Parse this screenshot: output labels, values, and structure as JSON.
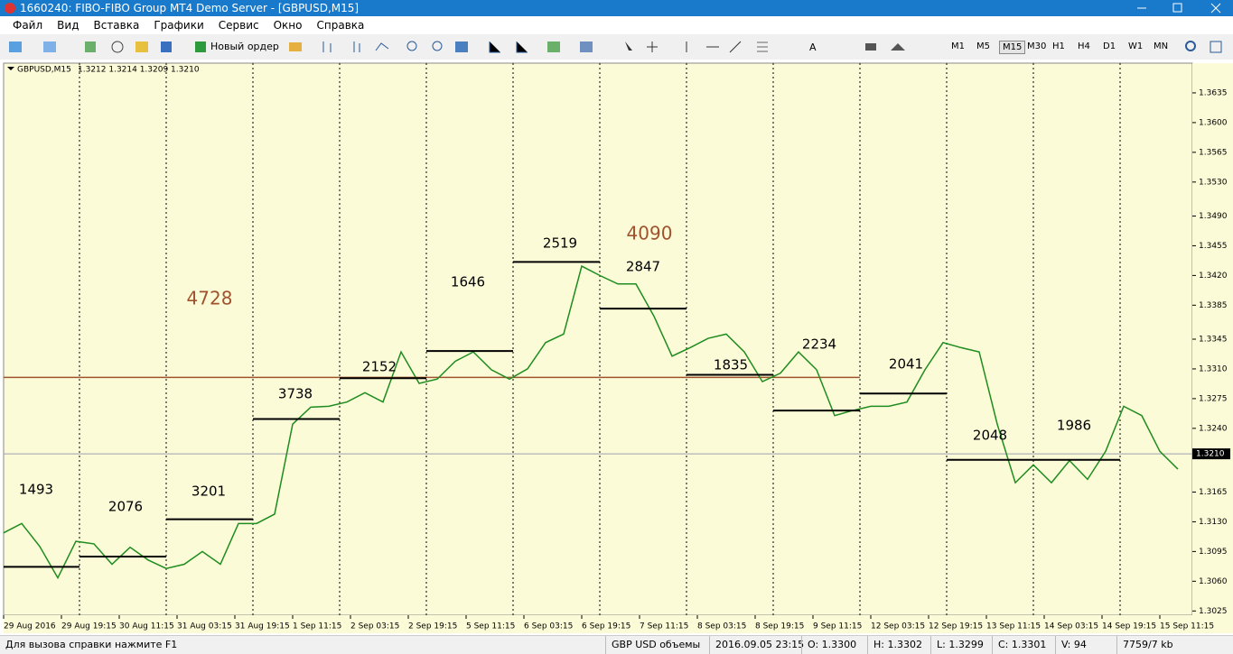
{
  "window": {
    "title": "1660240: FIBO-FIBO Group MT4 Demo Server - [GBPUSD,M15]"
  },
  "menu": [
    "Файл",
    "Вид",
    "Вставка",
    "Графики",
    "Сервис",
    "Окно",
    "Справка"
  ],
  "toolbar": {
    "new_order": "Новый ордер",
    "timeframes": [
      "M1",
      "M5",
      "M15",
      "M30",
      "H1",
      "H4",
      "D1",
      "W1",
      "MN"
    ],
    "active_timeframe": "M15"
  },
  "chart": {
    "type": "line",
    "symbol": "GBPUSD,M15",
    "quote": "1.3212 1.3214 1.3209 1.3210",
    "ylim": [
      1.302,
      1.367
    ],
    "yticks": [
      {
        "value": 1.3025,
        "label": "1.3025"
      },
      {
        "value": 1.306,
        "label": "1.3060"
      },
      {
        "value": 1.3095,
        "label": "1.3095"
      },
      {
        "value": 1.313,
        "label": "1.3130"
      },
      {
        "value": 1.3165,
        "label": "1.3165"
      },
      {
        "value": 1.324,
        "label": "1.3240"
      },
      {
        "value": 1.3275,
        "label": "1.3275"
      },
      {
        "value": 1.331,
        "label": "1.3310"
      },
      {
        "value": 1.3345,
        "label": "1.3345"
      },
      {
        "value": 1.3385,
        "label": "1.3385"
      },
      {
        "value": 1.342,
        "label": "1.3420"
      },
      {
        "value": 1.3455,
        "label": "1.3455"
      },
      {
        "value": 1.349,
        "label": "1.3490"
      },
      {
        "value": 1.353,
        "label": "1.3530"
      },
      {
        "value": 1.3565,
        "label": "1.3565"
      },
      {
        "value": 1.36,
        "label": "1.3600"
      },
      {
        "value": 1.3635,
        "label": "1.3635"
      }
    ],
    "current_price": {
      "value": 1.321,
      "label": "1.3210"
    },
    "categories": [
      "29 Aug 2016",
      "29 Aug 19:15",
      "30 Aug 11:15",
      "31 Aug 03:15",
      "31 Aug 19:15",
      "1 Sep 11:15",
      "2 Sep 03:15",
      "2 Sep 19:15",
      "5 Sep 11:15",
      "6 Sep 03:15",
      "6 Sep 19:15",
      "7 Sep 11:15",
      "8 Sep 03:15",
      "8 Sep 19:15",
      "9 Sep 11:15",
      "12 Sep 03:15",
      "12 Sep 19:15",
      "13 Sep 11:15",
      "14 Sep 03:15",
      "14 Sep 19:15",
      "15 Sep 11:15"
    ],
    "series": [
      {
        "name": "GBPUSD",
        "color": "#1e8c1e",
        "values": [
          1.3117,
          1.3128,
          1.3101,
          1.3064,
          1.3107,
          1.3104,
          1.308,
          1.31,
          1.3085,
          1.3075,
          1.308,
          1.3095,
          1.308,
          1.3128,
          1.3128,
          1.3139,
          1.3245,
          1.3265,
          1.3266,
          1.3271,
          1.3282,
          1.3271,
          1.333,
          1.3293,
          1.3298,
          1.3319,
          1.333,
          1.3309,
          1.3298,
          1.331,
          1.3341,
          1.3351,
          1.3431,
          1.342,
          1.341,
          1.341,
          1.3372,
          1.3325,
          1.3335,
          1.3346,
          1.3351,
          1.333,
          1.3295,
          1.3305,
          1.333,
          1.3309,
          1.3255,
          1.3261,
          1.3266,
          1.3266,
          1.3271,
          1.3309,
          1.3341,
          1.3335,
          1.333,
          1.3245,
          1.3176,
          1.3197,
          1.3176,
          1.3202,
          1.318,
          1.3213,
          1.3266,
          1.3255,
          1.3213,
          1.3192
        ]
      }
    ],
    "levels": [
      {
        "value": 1.3077,
        "volume": 1493
      },
      {
        "value": 1.3089,
        "volume": 2076
      },
      {
        "value": 1.3133,
        "volume": 3201
      },
      {
        "value": 1.3251,
        "volume": 3738
      },
      {
        "value": 1.3299,
        "volume": 2152
      },
      {
        "value": 1.3331,
        "volume": 1646
      },
      {
        "value": 1.3436,
        "volume": 2519
      },
      {
        "value": 1.3381,
        "volume": 2847
      },
      {
        "value": 1.3303,
        "volume": 1835
      },
      {
        "value": 1.3261,
        "volume": 2234
      },
      {
        "value": 1.3281,
        "volume": 2041
      },
      {
        "value": 1.3203,
        "volume": 2048
      },
      {
        "value": 1.3203,
        "volume": 1986
      }
    ],
    "totals": [
      4728,
      4090
    ],
    "reference_level": 1.33
  },
  "status": {
    "help": "Для вызова справки нажмите F1",
    "profile": "GBP USD объемы",
    "time": "2016.09.05 23:15",
    "open": "O: 1.3300",
    "high": "H: 1.3302",
    "low": "L: 1.3299",
    "close": "C: 1.3301",
    "volume": "V: 94",
    "traffic": "7759/7 kb"
  }
}
